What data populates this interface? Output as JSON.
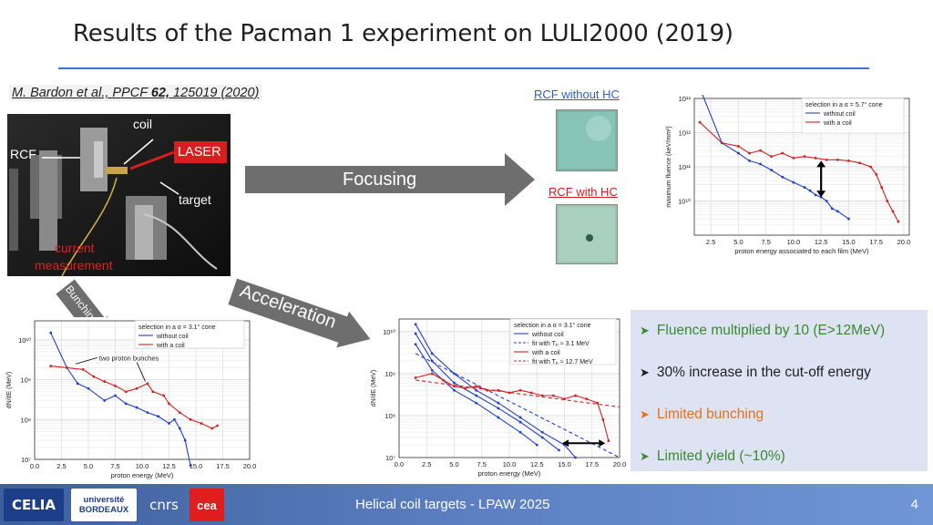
{
  "slide": {
    "title": "Results of the Pacman 1 experiment on LULI2000 (2019)",
    "citation_authors": "M. Bardon et al., PPCF ",
    "citation_volume": "62,",
    "citation_id": " 125019 (2020)"
  },
  "photo": {
    "labels": {
      "coil": "coil",
      "rcf": "RCF",
      "laser": "LASER",
      "target": "target",
      "current_measurement": "current\nmeasurement"
    },
    "current_line1": "current",
    "current_line2": "measurement"
  },
  "arrows": {
    "focusing": "Focusing",
    "acceleration": "Acceleration",
    "bunching": "Bunching"
  },
  "rcf": {
    "without_hc": "RCF without HC",
    "with_hc": "RCF with HC"
  },
  "bullets": [
    {
      "text": "Fluence multiplied by 10 (E>12MeV)",
      "color": "#3a8a2f"
    },
    {
      "text": "30% increase in the cut-off energy",
      "color": "#1f1f1f"
    },
    {
      "text": "Limited bunching",
      "color": "#e2701c"
    },
    {
      "text": "Limited yield (~10%)",
      "color": "#3a8a2f"
    }
  ],
  "footer": {
    "text": "Helical coil targets - LPAW 2025",
    "page": "4",
    "logos": [
      "CELIA",
      "université BORDEAUX",
      "cnrs",
      "cea"
    ]
  },
  "chart_data": [
    {
      "type": "line",
      "name": "fluence_chart",
      "xlabel": "proton energy associated to each film (MeV)",
      "ylabel": "maximum fluence (keV/mm²)",
      "yscale": "log",
      "xlim": [
        1,
        20.5
      ],
      "ylim": [
        1000000000.0,
        10000000000000.0
      ],
      "xticks": [
        "2.5",
        "5.0",
        "7.5",
        "10.0",
        "12.5",
        "15.0",
        "17.5",
        "20.0"
      ],
      "yticks": [
        "10¹³",
        "10¹²",
        "10¹¹",
        "10¹⁰"
      ],
      "legend": [
        "selection in a α = 5.7° cone",
        "without coil",
        "with a coil"
      ],
      "series": [
        {
          "name": "without coil",
          "color": "#1f3fd1",
          "x": [
            1.5,
            3.5,
            5.0,
            6.0,
            7.0,
            8.0,
            9.0,
            10.0,
            11.0,
            11.5,
            12.0,
            12.5,
            13.0,
            13.5,
            14.0,
            15.0
          ],
          "y": [
            20000000000000.0,
            500000000000.0,
            250000000000.0,
            150000000000.0,
            120000000000.0,
            80000000000.0,
            50000000000.0,
            35000000000.0,
            25000000000.0,
            20000000000.0,
            15000000000.0,
            13000000000.0,
            10000000000.0,
            6000000000.0,
            5000000000.0,
            3000000000.0
          ]
        },
        {
          "name": "with a coil",
          "color": "#d62020",
          "x": [
            1.5,
            3.5,
            5.0,
            6.0,
            7.0,
            8.0,
            9.0,
            10.0,
            11.0,
            12.0,
            13.0,
            14.0,
            15.0,
            16.0,
            17.0,
            17.5,
            18.0,
            18.5,
            19.0,
            19.5
          ],
          "y": [
            2000000000000.0,
            500000000000.0,
            400000000000.0,
            250000000000.0,
            300000000000.0,
            200000000000.0,
            250000000000.0,
            180000000000.0,
            200000000000.0,
            180000000000.0,
            160000000000.0,
            160000000000.0,
            150000000000.0,
            130000000000.0,
            100000000000.0,
            60000000000.0,
            25000000000.0,
            10000000000.0,
            5000000000.0,
            2500000000.0
          ]
        }
      ]
    },
    {
      "type": "line",
      "name": "bunching_chart",
      "xlabel": "proton energy (MeV)",
      "ylabel": "dN/dE (MeV)",
      "yscale": "log",
      "xlim": [
        0,
        20
      ],
      "ylim": [
        10000000.0,
        30000000000.0
      ],
      "xticks": [
        "0.0",
        "2.5",
        "5.0",
        "7.5",
        "10.0",
        "12.5",
        "15.0",
        "17.5",
        "20.0"
      ],
      "yticks": [
        "10¹⁰",
        "10⁹",
        "10⁸",
        "10⁷"
      ],
      "legend": [
        "selection in a α = 3.1° cone",
        "without coil",
        "with a coil"
      ],
      "annotation": "two proton bunches",
      "series": [
        {
          "name": "without coil",
          "color": "#1f3fd1",
          "x": [
            1.5,
            3.0,
            4.0,
            5.0,
            6.5,
            7.5,
            8.5,
            9.5,
            10.5,
            11.5,
            12.5,
            13.0,
            13.5,
            14.0,
            14.5
          ],
          "y": [
            15000000000.0,
            2000000000.0,
            800000000.0,
            600000000.0,
            300000000.0,
            400000000.0,
            250000000.0,
            200000000.0,
            150000000.0,
            120000000.0,
            80000000.0,
            100000000.0,
            60000000.0,
            30000000.0,
            7000000.0
          ]
        },
        {
          "name": "with a coil",
          "color": "#d62020",
          "x": [
            1.5,
            3.0,
            4.5,
            5.5,
            6.5,
            7.5,
            8.5,
            9.5,
            10.5,
            11.0,
            12.0,
            12.5,
            13.5,
            14.5,
            15.5,
            16.5,
            17.0
          ],
          "y": [
            2200000000.0,
            2000000000.0,
            1800000000.0,
            1200000000.0,
            900000000.0,
            700000000.0,
            500000000.0,
            600000000.0,
            800000000.0,
            500000000.0,
            400000000.0,
            250000000.0,
            150000000.0,
            100000000.0,
            80000000.0,
            60000000.0,
            70000000.0
          ]
        }
      ]
    },
    {
      "type": "line",
      "name": "acceleration_chart",
      "xlabel": "proton energy (MeV)",
      "ylabel": "dN/dE (MeV)",
      "yscale": "log",
      "xlim": [
        0,
        20
      ],
      "ylim": [
        10000000.0,
        20000000000.0
      ],
      "xticks": [
        "0.0",
        "2.5",
        "5.0",
        "7.5",
        "10.0",
        "12.5",
        "15.0",
        "17.5",
        "20.0"
      ],
      "yticks": [
        "10¹⁰",
        "10⁹",
        "10⁸",
        "10⁷"
      ],
      "legend": [
        "selection in a α = 3.1° cone",
        "without coil",
        "fit with Tₚ ≈ 3.1 MeV",
        "with a coil",
        "fit with Tₚ ≈ 12.7 MeV"
      ],
      "series": [
        {
          "name": "without coil (shot 1)",
          "color": "#1f3fd1",
          "x": [
            1.5,
            3,
            5,
            7,
            9,
            11,
            13,
            15,
            16
          ],
          "y": [
            15000000000.0,
            3000000000.0,
            1000000000.0,
            400000000.0,
            200000000.0,
            90000000.0,
            40000000.0,
            20000000.0,
            10000000.0
          ]
        },
        {
          "name": "without coil (shot 2)",
          "color": "#1f3fd1",
          "x": [
            1.5,
            3,
            5,
            7,
            9,
            11,
            13,
            14.5
          ],
          "y": [
            9000000000.0,
            2000000000.0,
            600000000.0,
            300000000.0,
            150000000.0,
            70000000.0,
            30000000.0,
            15000000.0
          ]
        },
        {
          "name": "without coil (shot 3)",
          "color": "#1f3fd1",
          "x": [
            1.5,
            3,
            5,
            7,
            9,
            11,
            12.5
          ],
          "y": [
            5000000000.0,
            1200000000.0,
            400000000.0,
            200000000.0,
            90000000.0,
            40000000.0,
            20000000.0
          ]
        },
        {
          "name": "fit with T_p 3.1 MeV",
          "color": "#1f3fd1",
          "dashed": true,
          "x": [
            1.5,
            20
          ],
          "y": [
            3000000000.0,
            10000000.0
          ]
        },
        {
          "name": "with a coil",
          "color": "#d62020",
          "x": [
            1.5,
            3,
            4,
            5,
            6,
            7,
            8,
            9,
            10,
            11,
            12,
            13,
            14,
            15,
            16,
            17,
            18,
            18.5,
            19
          ],
          "y": [
            800000000.0,
            1000000000.0,
            700000000.0,
            500000000.0,
            450000000.0,
            500000000.0,
            400000000.0,
            400000000.0,
            350000000.0,
            400000000.0,
            350000000.0,
            300000000.0,
            300000000.0,
            250000000.0,
            300000000.0,
            250000000.0,
            200000000.0,
            80000000.0,
            25000000.0
          ]
        },
        {
          "name": "fit with T_p 12.7 MeV",
          "color": "#d62020",
          "dashed": true,
          "x": [
            1.5,
            20
          ],
          "y": [
            700000000.0,
            160000000.0
          ]
        }
      ]
    }
  ]
}
